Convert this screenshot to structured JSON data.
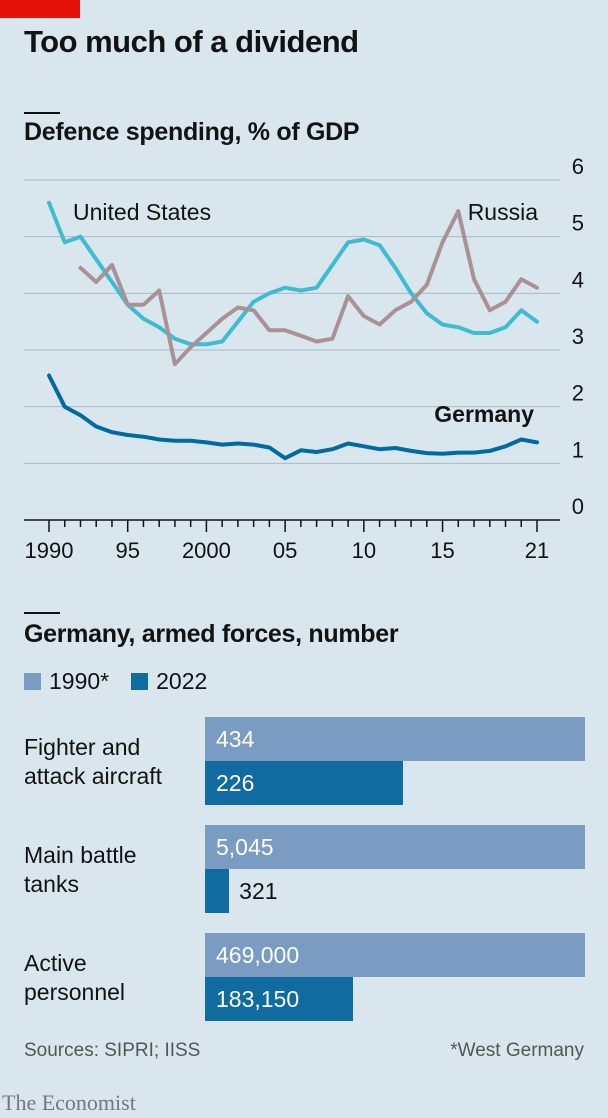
{
  "title": "Too much of a dividend",
  "chart_data": [
    {
      "type": "line",
      "title": "Defence spending, % of GDP",
      "xlabel": "",
      "ylabel": "",
      "ylim": [
        0,
        6
      ],
      "xlim": [
        1990,
        2021
      ],
      "yticks": [
        "0",
        "1",
        "2",
        "3",
        "4",
        "5",
        "6"
      ],
      "xticks": [
        {
          "value": 1990,
          "label": "1990"
        },
        {
          "value": 1995,
          "label": "95"
        },
        {
          "value": 2000,
          "label": "2000"
        },
        {
          "value": 2005,
          "label": "05"
        },
        {
          "value": 2010,
          "label": "10"
        },
        {
          "value": 2015,
          "label": "15"
        },
        {
          "value": 2021,
          "label": "21"
        }
      ],
      "grid": true,
      "series": [
        {
          "name": "United States",
          "color": "#3ebcd2",
          "x": [
            1990,
            1991,
            1992,
            1993,
            1994,
            1995,
            1996,
            1997,
            1998,
            1999,
            2000,
            2001,
            2002,
            2003,
            2004,
            2005,
            2006,
            2007,
            2008,
            2009,
            2010,
            2011,
            2012,
            2013,
            2014,
            2015,
            2016,
            2017,
            2018,
            2019,
            2020,
            2021
          ],
          "values": [
            5.6,
            4.9,
            5.0,
            4.6,
            4.2,
            3.8,
            3.55,
            3.4,
            3.2,
            3.1,
            3.1,
            3.15,
            3.5,
            3.85,
            4.0,
            4.1,
            4.05,
            4.1,
            4.5,
            4.9,
            4.95,
            4.85,
            4.45,
            4.0,
            3.65,
            3.45,
            3.4,
            3.3,
            3.3,
            3.4,
            3.7,
            3.5
          ]
        },
        {
          "name": "Russia",
          "color": "#a99197",
          "x": [
            1992,
            1993,
            1994,
            1995,
            1996,
            1997,
            1998,
            1999,
            2000,
            2001,
            2002,
            2003,
            2004,
            2005,
            2006,
            2007,
            2008,
            2009,
            2010,
            2011,
            2012,
            2013,
            2014,
            2015,
            2016,
            2017,
            2018,
            2019,
            2020,
            2021
          ],
          "values": [
            4.45,
            4.2,
            4.5,
            3.8,
            3.8,
            4.05,
            2.75,
            3.05,
            3.3,
            3.55,
            3.75,
            3.7,
            3.35,
            3.35,
            3.25,
            3.15,
            3.2,
            3.95,
            3.6,
            3.45,
            3.7,
            3.85,
            4.15,
            4.9,
            5.45,
            4.25,
            3.7,
            3.85,
            4.25,
            4.1
          ]
        },
        {
          "name": "Germany",
          "color": "#006ba2",
          "x": [
            1990,
            1991,
            1992,
            1993,
            1994,
            1995,
            1996,
            1997,
            1998,
            1999,
            2000,
            2001,
            2002,
            2003,
            2004,
            2005,
            2006,
            2007,
            2008,
            2009,
            2010,
            2011,
            2012,
            2013,
            2014,
            2015,
            2016,
            2017,
            2018,
            2019,
            2020,
            2021
          ],
          "values": [
            2.55,
            2.0,
            1.85,
            1.65,
            1.55,
            1.5,
            1.47,
            1.42,
            1.4,
            1.4,
            1.37,
            1.33,
            1.35,
            1.33,
            1.28,
            1.09,
            1.23,
            1.2,
            1.25,
            1.35,
            1.3,
            1.25,
            1.27,
            1.22,
            1.18,
            1.17,
            1.19,
            1.19,
            1.22,
            1.3,
            1.42,
            1.37
          ]
        }
      ]
    },
    {
      "type": "bar",
      "orientation": "horizontal",
      "title": "Germany, armed forces, number",
      "categories": [
        "Fighter and attack aircraft",
        "Main battle tanks",
        "Active personnel"
      ],
      "category_lines": [
        [
          "Fighter and",
          "attack aircraft"
        ],
        [
          "Main battle",
          "tanks"
        ],
        [
          "Active",
          "personnel"
        ]
      ],
      "series": [
        {
          "name": "1990*",
          "color": "#7a9cc2",
          "values": [
            434,
            5045,
            469000
          ],
          "labels": [
            "434",
            "5,045",
            "469,000"
          ]
        },
        {
          "name": "2022",
          "color": "#0f6ba0",
          "values": [
            226,
            321,
            183150
          ],
          "labels": [
            "226",
            "321",
            "183,150"
          ]
        }
      ],
      "scale": "each category scaled to its 1990 value",
      "legend": "top-left"
    }
  ],
  "footer": {
    "sources": "Sources: SIPRI; IISS",
    "note": "*West Germany",
    "brand": "The Economist"
  }
}
